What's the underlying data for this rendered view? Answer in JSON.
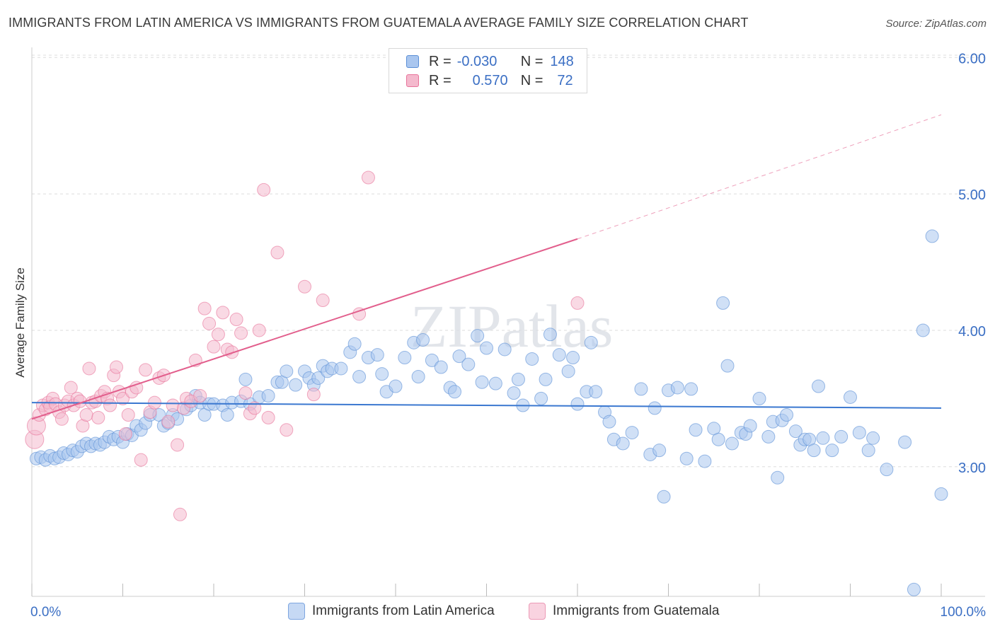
{
  "title": "IMMIGRANTS FROM LATIN AMERICA VS IMMIGRANTS FROM GUATEMALA AVERAGE FAMILY SIZE CORRELATION CHART",
  "source": "Source: ZipAtlas.com",
  "watermark": "ZIPatlas",
  "colors": {
    "blue": "#5b8fd6",
    "blue_fill": "#a9c6ef",
    "pink": "#e8739a",
    "pink_fill": "#f4b9cd",
    "axis_text": "#3b6fc4",
    "grid": "#dddddd"
  },
  "legend": {
    "rows": [
      {
        "r_label": "R =",
        "r_value": "-0.030",
        "n_label": "N =",
        "n_value": "148"
      },
      {
        "r_label": "R =",
        "r_value": "0.570",
        "n_label": "N =",
        "n_value": "72"
      }
    ]
  },
  "bottom_legend": [
    "Immigrants from Latin America",
    "Immigrants from Guatemala"
  ],
  "chart_data": {
    "type": "scatter",
    "xlabel": "",
    "ylabel": "Average Family Size",
    "x_tick_labels": [
      "0.0%",
      "100.0%"
    ],
    "y_tick_labels": [
      "3.00",
      "4.00",
      "5.00",
      "6.00"
    ],
    "xlim": [
      0,
      100
    ],
    "ylim": [
      2.05,
      6.1
    ],
    "grid": true,
    "series": [
      {
        "name": "Immigrants from Latin America",
        "color": "#5b8fd6",
        "trend": {
          "x0": 0,
          "y0": 3.47,
          "x1": 100,
          "y1": 3.43
        },
        "points": [
          [
            0.5,
            3.06
          ],
          [
            1,
            3.07
          ],
          [
            1.5,
            3.05
          ],
          [
            2,
            3.08
          ],
          [
            2.5,
            3.06
          ],
          [
            3,
            3.07
          ],
          [
            3.5,
            3.1
          ],
          [
            4,
            3.09
          ],
          [
            4.5,
            3.12
          ],
          [
            5,
            3.11
          ],
          [
            5.5,
            3.15
          ],
          [
            6,
            3.17
          ],
          [
            6.5,
            3.15
          ],
          [
            7,
            3.17
          ],
          [
            7.5,
            3.16
          ],
          [
            8,
            3.18
          ],
          [
            8.5,
            3.22
          ],
          [
            9,
            3.2
          ],
          [
            9.5,
            3.22
          ],
          [
            10,
            3.18
          ],
          [
            10.5,
            3.24
          ],
          [
            11,
            3.23
          ],
          [
            11.5,
            3.3
          ],
          [
            12,
            3.27
          ],
          [
            12.5,
            3.32
          ],
          [
            13,
            3.38
          ],
          [
            14,
            3.38
          ],
          [
            14.5,
            3.3
          ],
          [
            15,
            3.32
          ],
          [
            15.5,
            3.38
          ],
          [
            16,
            3.35
          ],
          [
            17,
            3.42
          ],
          [
            17.5,
            3.45
          ],
          [
            18,
            3.52
          ],
          [
            18.5,
            3.47
          ],
          [
            19,
            3.38
          ],
          [
            19.5,
            3.46
          ],
          [
            20,
            3.46
          ],
          [
            21,
            3.45
          ],
          [
            21.5,
            3.38
          ],
          [
            22,
            3.47
          ],
          [
            23,
            3.48
          ],
          [
            23.5,
            3.64
          ],
          [
            24,
            3.46
          ],
          [
            25,
            3.51
          ],
          [
            26,
            3.52
          ],
          [
            27,
            3.62
          ],
          [
            27.5,
            3.62
          ],
          [
            28,
            3.7
          ],
          [
            29,
            3.6
          ],
          [
            30,
            3.7
          ],
          [
            30.5,
            3.65
          ],
          [
            31,
            3.6
          ],
          [
            31.5,
            3.65
          ],
          [
            32,
            3.74
          ],
          [
            32.5,
            3.7
          ],
          [
            33,
            3.72
          ],
          [
            34,
            3.72
          ],
          [
            35,
            3.84
          ],
          [
            35.5,
            3.9
          ],
          [
            36,
            3.66
          ],
          [
            37,
            3.8
          ],
          [
            38,
            3.82
          ],
          [
            38.5,
            3.68
          ],
          [
            39,
            3.55
          ],
          [
            40,
            3.59
          ],
          [
            41,
            3.8
          ],
          [
            42,
            3.91
          ],
          [
            42.5,
            3.66
          ],
          [
            43,
            3.93
          ],
          [
            44,
            3.78
          ],
          [
            45,
            3.73
          ],
          [
            46,
            3.58
          ],
          [
            46.5,
            3.55
          ],
          [
            47,
            3.81
          ],
          [
            48,
            3.75
          ],
          [
            49,
            3.96
          ],
          [
            49.5,
            3.62
          ],
          [
            50,
            3.87
          ],
          [
            51,
            3.61
          ],
          [
            52,
            3.86
          ],
          [
            53,
            3.54
          ],
          [
            53.5,
            3.64
          ],
          [
            54,
            3.45
          ],
          [
            55,
            3.79
          ],
          [
            56,
            3.5
          ],
          [
            56.5,
            3.64
          ],
          [
            57,
            3.97
          ],
          [
            58,
            3.82
          ],
          [
            59,
            3.7
          ],
          [
            59.5,
            3.8
          ],
          [
            60,
            3.46
          ],
          [
            61,
            3.55
          ],
          [
            61.5,
            3.91
          ],
          [
            62,
            3.55
          ],
          [
            63,
            3.4
          ],
          [
            63.5,
            3.33
          ],
          [
            64,
            3.2
          ],
          [
            65,
            3.17
          ],
          [
            66,
            3.25
          ],
          [
            67,
            3.57
          ],
          [
            68,
            3.09
          ],
          [
            68.5,
            3.43
          ],
          [
            69,
            3.12
          ],
          [
            69.5,
            2.78
          ],
          [
            70,
            3.56
          ],
          [
            71,
            3.58
          ],
          [
            72,
            3.06
          ],
          [
            72.5,
            3.57
          ],
          [
            73,
            3.27
          ],
          [
            74,
            3.04
          ],
          [
            75,
            3.28
          ],
          [
            75.5,
            3.2
          ],
          [
            76,
            4.2
          ],
          [
            76.5,
            3.74
          ],
          [
            77,
            3.17
          ],
          [
            78,
            3.25
          ],
          [
            78.5,
            3.24
          ],
          [
            79,
            3.3
          ],
          [
            80,
            3.5
          ],
          [
            81,
            3.22
          ],
          [
            81.5,
            3.33
          ],
          [
            82,
            2.92
          ],
          [
            82.5,
            3.34
          ],
          [
            83,
            3.38
          ],
          [
            84,
            3.26
          ],
          [
            84.5,
            3.16
          ],
          [
            85,
            3.2
          ],
          [
            85.5,
            3.2
          ],
          [
            86,
            3.12
          ],
          [
            86.5,
            3.59
          ],
          [
            87,
            3.21
          ],
          [
            88,
            3.12
          ],
          [
            89,
            3.22
          ],
          [
            90,
            3.51
          ],
          [
            91,
            3.25
          ],
          [
            92,
            3.12
          ],
          [
            92.5,
            3.21
          ],
          [
            94,
            2.98
          ],
          [
            96,
            3.18
          ],
          [
            97,
            2.1
          ],
          [
            98,
            4.0
          ],
          [
            99,
            4.69
          ],
          [
            100,
            2.8
          ]
        ]
      },
      {
        "name": "Immigrants from Guatemala",
        "color": "#e8739a",
        "trend": {
          "x0": 0,
          "y0": 3.35,
          "x1": 60,
          "y1": 4.67,
          "dash_to_x": 100,
          "dash_to_y": 5.58
        },
        "points": [
          [
            0.3,
            3.2
          ],
          [
            0.5,
            3.3
          ],
          [
            0.8,
            3.38
          ],
          [
            1.2,
            3.45
          ],
          [
            1.5,
            3.42
          ],
          [
            1.8,
            3.47
          ],
          [
            2,
            3.44
          ],
          [
            2.3,
            3.5
          ],
          [
            2.6,
            3.46
          ],
          [
            3,
            3.4
          ],
          [
            3.3,
            3.35
          ],
          [
            3.6,
            3.45
          ],
          [
            4,
            3.48
          ],
          [
            4.3,
            3.58
          ],
          [
            4.6,
            3.45
          ],
          [
            5,
            3.5
          ],
          [
            5.3,
            3.48
          ],
          [
            5.6,
            3.3
          ],
          [
            6,
            3.38
          ],
          [
            6.3,
            3.72
          ],
          [
            6.6,
            3.47
          ],
          [
            7,
            3.48
          ],
          [
            7.3,
            3.36
          ],
          [
            7.6,
            3.52
          ],
          [
            8,
            3.55
          ],
          [
            8.3,
            3.5
          ],
          [
            8.6,
            3.45
          ],
          [
            9,
            3.67
          ],
          [
            9.3,
            3.73
          ],
          [
            9.6,
            3.55
          ],
          [
            10,
            3.5
          ],
          [
            10.3,
            3.24
          ],
          [
            10.6,
            3.38
          ],
          [
            11,
            3.55
          ],
          [
            11.5,
            3.58
          ],
          [
            12,
            3.05
          ],
          [
            12.5,
            3.71
          ],
          [
            13,
            3.4
          ],
          [
            13.5,
            3.47
          ],
          [
            14,
            3.65
          ],
          [
            14.5,
            3.67
          ],
          [
            15,
            3.33
          ],
          [
            15.5,
            3.45
          ],
          [
            16,
            3.16
          ],
          [
            16.3,
            2.65
          ],
          [
            16.7,
            3.43
          ],
          [
            17,
            3.5
          ],
          [
            17.5,
            3.48
          ],
          [
            18,
            3.78
          ],
          [
            18.5,
            3.52
          ],
          [
            19,
            4.16
          ],
          [
            19.5,
            4.05
          ],
          [
            20,
            3.88
          ],
          [
            20.5,
            3.97
          ],
          [
            21,
            4.13
          ],
          [
            21.5,
            3.86
          ],
          [
            22,
            3.84
          ],
          [
            22.5,
            4.08
          ],
          [
            23,
            3.98
          ],
          [
            23.5,
            3.54
          ],
          [
            24,
            3.39
          ],
          [
            24.5,
            3.43
          ],
          [
            25,
            4.0
          ],
          [
            25.5,
            5.03
          ],
          [
            26,
            3.36
          ],
          [
            27,
            4.57
          ],
          [
            28,
            3.27
          ],
          [
            30,
            4.32
          ],
          [
            31,
            3.53
          ],
          [
            32,
            4.22
          ],
          [
            36,
            4.12
          ],
          [
            37,
            5.12
          ],
          [
            60,
            4.2
          ]
        ]
      }
    ]
  }
}
